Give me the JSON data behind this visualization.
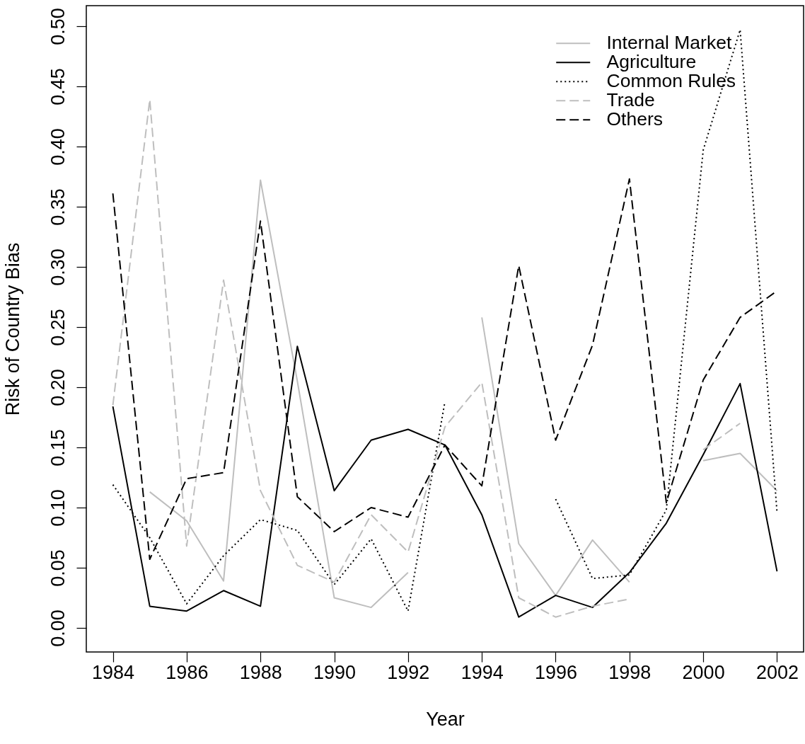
{
  "chart_data": {
    "type": "line",
    "xlabel": "Year",
    "ylabel": "Risk of Country Bias",
    "x": [
      1984,
      1985,
      1986,
      1987,
      1988,
      1989,
      1990,
      1991,
      1992,
      1993,
      1994,
      1995,
      1996,
      1997,
      1998,
      1999,
      2000,
      2001,
      2002
    ],
    "series": [
      {
        "name": "Internal Market",
        "color": "#bebebe",
        "line_style": "solid",
        "values": [
          null,
          0.113,
          0.089,
          0.039,
          0.372,
          0.205,
          0.025,
          0.017,
          0.046,
          null,
          0.258,
          0.07,
          0.027,
          0.073,
          0.038,
          null,
          0.139,
          0.145,
          0.114
        ]
      },
      {
        "name": "Agriculture",
        "color": "#000000",
        "line_style": "solid",
        "values": [
          0.184,
          0.018,
          0.014,
          0.031,
          0.018,
          0.234,
          0.114,
          0.156,
          0.165,
          0.152,
          0.094,
          0.009,
          0.027,
          0.017,
          0.046,
          0.087,
          0.144,
          0.203,
          0.047
        ]
      },
      {
        "name": "Common Rules",
        "color": "#000000",
        "line_style": "dotted",
        "values": [
          0.119,
          0.075,
          0.02,
          0.06,
          0.09,
          0.081,
          0.036,
          0.074,
          0.014,
          0.188,
          null,
          null,
          0.107,
          0.041,
          0.044,
          0.098,
          0.397,
          0.497,
          0.096
        ]
      },
      {
        "name": "Trade",
        "color": "#bebebe",
        "line_style": "dashed",
        "values": [
          0.185,
          0.439,
          0.068,
          0.289,
          0.114,
          0.052,
          0.038,
          0.094,
          0.063,
          0.167,
          0.204,
          0.025,
          0.009,
          0.018,
          0.024,
          null,
          0.148,
          0.17,
          null
        ]
      },
      {
        "name": "Others",
        "color": "#000000",
        "line_style": "dashed",
        "values": [
          0.361,
          0.057,
          0.124,
          0.129,
          0.338,
          0.109,
          0.08,
          0.1,
          0.092,
          0.152,
          0.118,
          0.301,
          0.156,
          0.235,
          0.373,
          0.104,
          0.206,
          0.258,
          0.28
        ]
      }
    ],
    "xlim": [
      1983.28,
      2002.72
    ],
    "xticks": [
      1984,
      1986,
      1988,
      1990,
      1992,
      1994,
      1996,
      1998,
      2000,
      2002
    ],
    "ylim": [
      -0.02,
      0.517
    ],
    "yticks": [
      {
        "value": 0,
        "label": "0.00"
      },
      {
        "value": 0.05,
        "label": "0.05"
      },
      {
        "value": 0.1,
        "label": "0.10"
      },
      {
        "value": 0.15,
        "label": "0.15"
      },
      {
        "value": 0.2,
        "label": "0.20"
      },
      {
        "value": 0.25,
        "label": "0.25"
      },
      {
        "value": 0.3,
        "label": "0.30"
      },
      {
        "value": 0.35,
        "label": "0.35"
      },
      {
        "value": 0.4,
        "label": "0.40"
      },
      {
        "value": 0.45,
        "label": "0.45"
      },
      {
        "value": 0.5,
        "label": "0.50"
      }
    ],
    "grid": false,
    "legend": "top right"
  }
}
